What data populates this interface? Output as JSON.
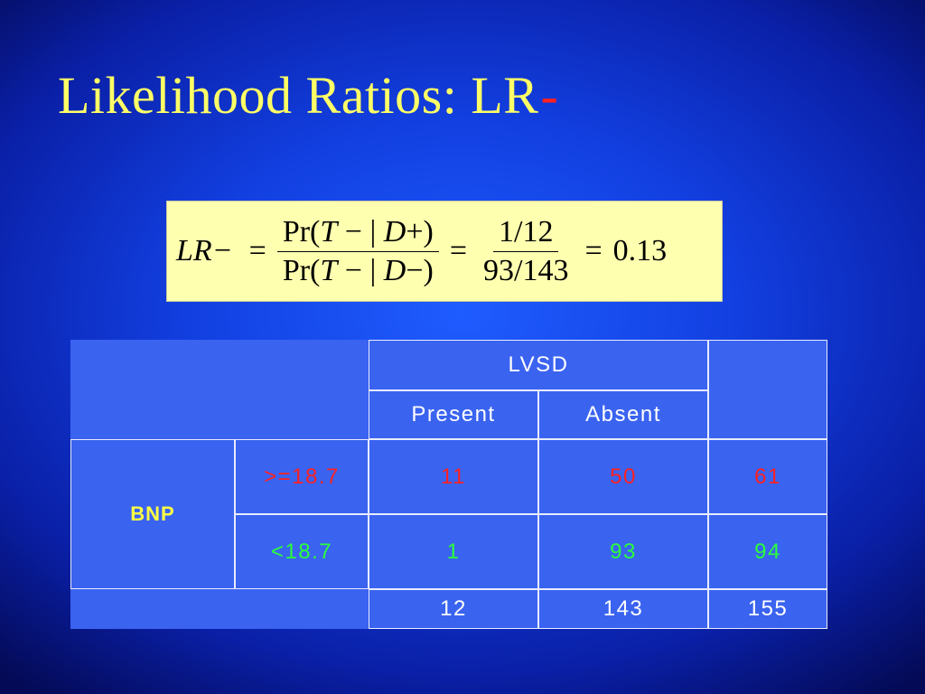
{
  "slide": {
    "title_main": "Likelihood Ratios: LR",
    "title_accent": "-"
  },
  "formula": {
    "lhs": "LR−",
    "eq": "=",
    "frac1_num": [
      "Pr(",
      "T",
      " − | ",
      "D",
      "+)"
    ],
    "frac1_den": [
      "Pr(",
      "T",
      " − | ",
      "D",
      "−)"
    ],
    "frac2_num": "1/12",
    "frac2_den": "93/143",
    "result": "0.13"
  },
  "table": {
    "col_group_header": "LVSD",
    "col_headers": [
      "Present",
      "Absent"
    ],
    "row_group_header": "BNP",
    "rows": [
      {
        "label": ">=18.7",
        "present": "11",
        "absent": "50",
        "total": "61"
      },
      {
        "label": "<18.7",
        "present": "1",
        "absent": "93",
        "total": "94"
      }
    ],
    "totals": {
      "present": "12",
      "absent": "143",
      "total": "155"
    },
    "colors": {
      "cell_bg": "#3a63f0",
      "red": "#ff2020",
      "green": "#2bff3a",
      "yellow": "#ffff44"
    }
  }
}
